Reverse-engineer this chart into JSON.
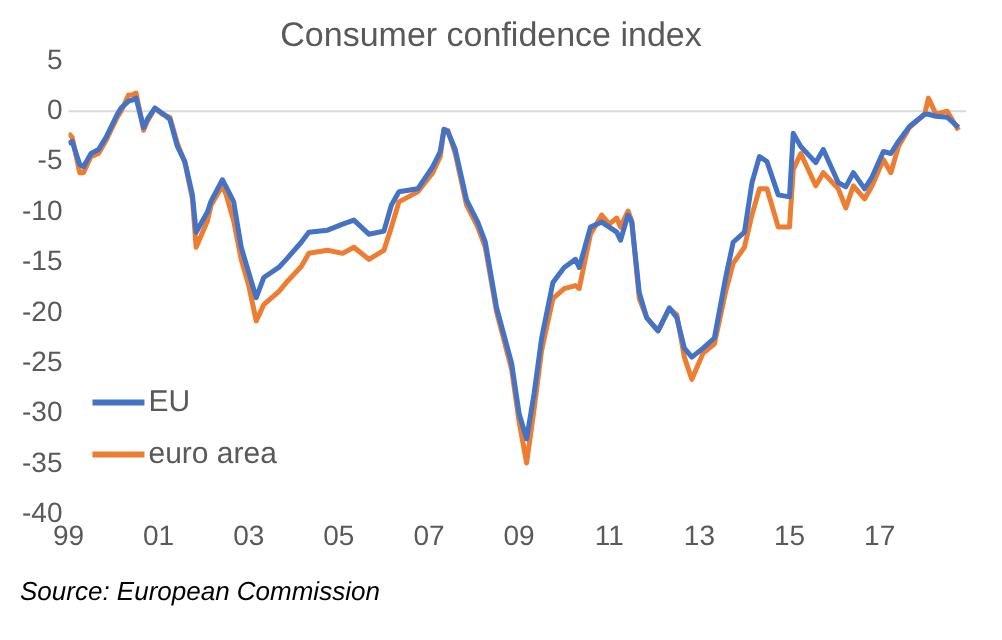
{
  "chart_data": {
    "type": "line",
    "title": "Consumer confidence index",
    "x": [
      "1999-01",
      "1999-02",
      "1999-04",
      "1999-05",
      "1999-07",
      "1999-09",
      "1999-11",
      "2000-02",
      "2000-03",
      "2000-05",
      "2000-06",
      "2000-07",
      "2000-09",
      "2000-10",
      "2000-12",
      "2001-02",
      "2001-04",
      "2001-06",
      "2001-08",
      "2001-10",
      "2001-11",
      "2002-02",
      "2002-03",
      "2002-06",
      "2002-07",
      "2002-09",
      "2002-11",
      "2003-01",
      "2003-03",
      "2003-05",
      "2003-09",
      "2003-11",
      "2004-03",
      "2004-05",
      "2004-10",
      "2005-02",
      "2005-05",
      "2005-09",
      "2006-01",
      "2006-03",
      "2006-05",
      "2006-10",
      "2007-02",
      "2007-04",
      "2007-05",
      "2007-06",
      "2007-08",
      "2007-11",
      "2008-02",
      "2008-04",
      "2008-07",
      "2008-11",
      "2009-01",
      "2009-03",
      "2009-05",
      "2009-07",
      "2009-10",
      "2010-01",
      "2010-04",
      "2010-05",
      "2010-08",
      "2010-11",
      "2011-01",
      "2011-03",
      "2011-04",
      "2011-06",
      "2011-07",
      "2011-09",
      "2011-11",
      "2012-02",
      "2012-05",
      "2012-07",
      "2012-09",
      "2012-11",
      "2013-02",
      "2013-05",
      "2013-08",
      "2013-10",
      "2014-01",
      "2014-03",
      "2014-05",
      "2014-07",
      "2014-10",
      "2015-01",
      "2015-02",
      "2015-04",
      "2015-08",
      "2015-10",
      "2016-02",
      "2016-04",
      "2016-06",
      "2016-09",
      "2016-11",
      "2017-02",
      "2017-04",
      "2017-06",
      "2017-09",
      "2018-01",
      "2018-02",
      "2018-04",
      "2018-07",
      "2018-10"
    ],
    "series": [
      {
        "name": "EU",
        "color": "#4472c4",
        "values": [
          -3.2,
          -3.0,
          -5.3,
          -5.5,
          -4.2,
          -3.8,
          -2.6,
          -0.3,
          0.3,
          1.0,
          1.1,
          1.3,
          -1.6,
          -0.8,
          0.3,
          -0.2,
          -0.8,
          -3.5,
          -5.0,
          -8.3,
          -12.0,
          -10.0,
          -8.9,
          -6.8,
          -7.5,
          -9.0,
          -13.5,
          -16.0,
          -18.5,
          -16.5,
          -15.5,
          -14.7,
          -13.0,
          -12.0,
          -11.8,
          -11.2,
          -10.8,
          -12.2,
          -11.9,
          -9.3,
          -8.0,
          -7.7,
          -5.5,
          -4.0,
          -1.8,
          -2.0,
          -3.8,
          -8.8,
          -11.0,
          -13.0,
          -19.5,
          -25.0,
          -30.0,
          -32.5,
          -28.0,
          -22.5,
          -17.0,
          -15.5,
          -14.7,
          -15.5,
          -11.5,
          -11.0,
          -11.5,
          -12.0,
          -12.8,
          -10.3,
          -11.0,
          -18.0,
          -20.5,
          -21.8,
          -19.5,
          -20.5,
          -23.5,
          -24.4,
          -23.5,
          -22.5,
          -16.5,
          -13.0,
          -12.0,
          -7.1,
          -4.5,
          -5.0,
          -8.3,
          -8.5,
          -2.2,
          -3.5,
          -5.1,
          -3.8,
          -7.1,
          -7.5,
          -6.1,
          -7.7,
          -6.5,
          -4.0,
          -4.2,
          -3.0,
          -1.5,
          -0.3,
          -0.3,
          -0.5,
          -0.6,
          -1.6
        ]
      },
      {
        "name": "euro area",
        "color": "#ed7d31",
        "values": [
          -2.2,
          -2.6,
          -6.1,
          -6.1,
          -4.5,
          -4.2,
          -2.9,
          -0.6,
          0,
          1.6,
          1.6,
          1.8,
          -1.9,
          -1.0,
          0.3,
          -0.3,
          -0.6,
          -3.2,
          -5.1,
          -8.7,
          -13.5,
          -10.9,
          -9.3,
          -7.4,
          -8.3,
          -10.9,
          -14.7,
          -17.3,
          -20.8,
          -19.2,
          -17.9,
          -17.0,
          -15.4,
          -14.1,
          -13.8,
          -14.1,
          -13.5,
          -14.7,
          -13.8,
          -11.5,
          -9.0,
          -8.0,
          -6.1,
          -4.5,
          -1.8,
          -1.9,
          -4.2,
          -9.3,
          -11.5,
          -13.5,
          -19.9,
          -25.6,
          -30.8,
          -34.9,
          -29.5,
          -23.7,
          -18.6,
          -17.6,
          -17.3,
          -17.6,
          -12.2,
          -10.3,
          -11.2,
          -10.6,
          -11.5,
          -9.9,
          -10.9,
          -18.6,
          -20.5,
          -21.8,
          -19.6,
          -20.2,
          -24.4,
          -26.6,
          -24.0,
          -23.1,
          -17.9,
          -15.1,
          -13.5,
          -10.3,
          -7.7,
          -7.7,
          -11.5,
          -11.5,
          -5.8,
          -4.2,
          -7.4,
          -6.1,
          -7.7,
          -9.6,
          -7.4,
          -8.7,
          -7.4,
          -4.8,
          -6.1,
          -3.5,
          -1.6,
          -0.3,
          1.3,
          -0.3,
          0,
          -1.9
        ]
      }
    ],
    "xlim": [
      "1999-01",
      "2018-12"
    ],
    "xticks": [
      {
        "value": "1999",
        "label": "99"
      },
      {
        "value": "2001",
        "label": "01"
      },
      {
        "value": "2003",
        "label": "03"
      },
      {
        "value": "2005",
        "label": "05"
      },
      {
        "value": "2007",
        "label": "07"
      },
      {
        "value": "2009",
        "label": "09"
      },
      {
        "value": "2011",
        "label": "11"
      },
      {
        "value": "2013",
        "label": "13"
      },
      {
        "value": "2015",
        "label": "15"
      },
      {
        "value": "2017",
        "label": "17"
      }
    ],
    "ylim": [
      -40,
      5
    ],
    "yticks": [
      -40,
      -35,
      -30,
      -25,
      -20,
      -15,
      -10,
      -5,
      0,
      5
    ],
    "ref_lines": [
      {
        "axis": "y",
        "value": 0,
        "color": "#d9d9d9"
      }
    ],
    "grid": false,
    "legend": "bottom left",
    "marker": "none",
    "line_style": "solid",
    "annotations": [
      "Source: European Commission"
    ]
  }
}
